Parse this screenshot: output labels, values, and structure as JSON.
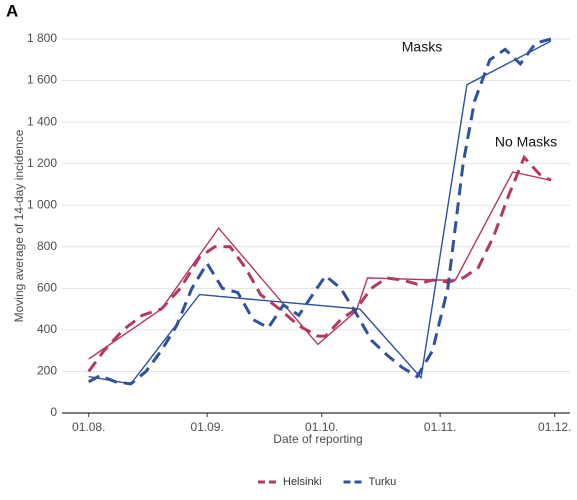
{
  "chart_data": {
    "type": "line",
    "panel_label": "A",
    "xlabel": "Date of reporting",
    "ylabel": "Moving average of 14-day incidence",
    "annotations": [
      "Masks",
      "No Masks"
    ],
    "xlim": [
      "25.07.",
      "05.12."
    ],
    "xticks": [
      "01.08.",
      "01.09.",
      "01.10.",
      "01.11.",
      "01.12."
    ],
    "ylim": [
      0,
      1800
    ],
    "yticks": [
      0,
      200,
      400,
      600,
      800,
      {
        "value": 1000,
        "label": "1 000"
      },
      {
        "value": 1200,
        "label": "1 200"
      },
      {
        "value": 1400,
        "label": "1 400"
      },
      {
        "value": 1600,
        "label": "1 600"
      },
      {
        "value": 1800,
        "label": "1 800"
      }
    ],
    "grid": true,
    "legend": "bottom",
    "series": [
      {
        "name": "Helsinki",
        "color": "#b3395f",
        "x": [
          "01.08.",
          "05.08.",
          "10.08.",
          "15.08.",
          "20.08.",
          "25.08.",
          "30.08.",
          "03.09.",
          "07.09.",
          "11.09.",
          "15.09.",
          "20.09.",
          "25.09.",
          "30.09.",
          "02.10.",
          "06.10.",
          "10.10.",
          "14.10.",
          "18.10.",
          "22.10.",
          "26.10.",
          "30.10.",
          "03.11.",
          "07.11.",
          "11.11.",
          "15.11.",
          "19.11.",
          "23.11.",
          "27.11.",
          "30.11."
        ],
        "values": [
          200,
          300,
          400,
          470,
          500,
          600,
          750,
          800,
          800,
          700,
          570,
          500,
          420,
          370,
          370,
          450,
          500,
          600,
          650,
          640,
          620,
          640,
          630,
          650,
          700,
          850,
          1050,
          1230,
          1150,
          1120
        ],
        "fit": {
          "x": [
            "01.08.",
            "20.08.",
            "04.09.",
            "30.09.",
            "10.10.",
            "13.10.",
            "31.10.",
            "05.11.",
            "20.11.",
            "30.11."
          ],
          "values": [
            260,
            500,
            890,
            330,
            490,
            650,
            640,
            640,
            1160,
            1120
          ]
        }
      },
      {
        "name": "Turku",
        "color": "#2f529c",
        "x": [
          "01.08.",
          "04.08.",
          "08.08.",
          "12.08.",
          "16.08.",
          "20.08.",
          "24.08.",
          "28.08.",
          "01.09.",
          "05.09.",
          "09.09.",
          "13.09.",
          "17.09.",
          "21.09.",
          "25.09.",
          "29.09.",
          "02.10.",
          "06.10.",
          "10.10.",
          "14.10.",
          "18.10.",
          "22.10.",
          "26.10.",
          "30.10.",
          "03.11.",
          "07.11.",
          "10.11.",
          "14.11.",
          "18.11.",
          "22.11.",
          "26.11.",
          "30.11."
        ],
        "values": [
          150,
          180,
          150,
          140,
          200,
          300,
          420,
          600,
          720,
          600,
          580,
          450,
          410,
          520,
          470,
          580,
          660,
          600,
          480,
          350,
          280,
          220,
          175,
          300,
          600,
          1200,
          1500,
          1700,
          1750,
          1680,
          1780,
          1800
        ],
        "fit": {
          "x": [
            "01.08.",
            "12.08.",
            "30.08.",
            "11.10.",
            "27.10.",
            "08.11.",
            "30.11."
          ],
          "values": [
            175,
            140,
            570,
            500,
            170,
            1580,
            1790
          ]
        }
      }
    ]
  }
}
